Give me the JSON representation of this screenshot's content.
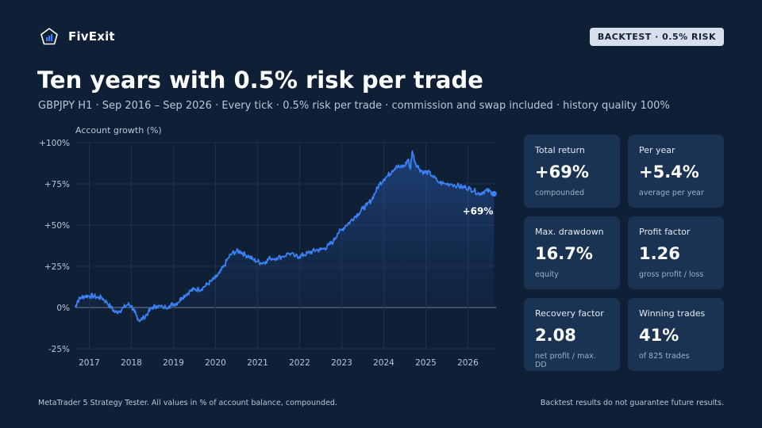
{
  "brand": {
    "name": "FivExit"
  },
  "badge": "BACKTEST · 0.5% RISK",
  "title": "Ten years with 0.5% risk per trade",
  "subtitle": "GBPJPY H1 · Sep 2016 – Sep 2026 · Every tick · 0.5% risk per trade · commission and swap included · history quality 100%",
  "colors": {
    "background": "#0f1f35",
    "card": "#1a3353",
    "line": "#3b82f6",
    "badge_bg": "#d6dfeb"
  },
  "cards": [
    {
      "label": "Total return",
      "value": "+69%",
      "sub": "compounded"
    },
    {
      "label": "Per year",
      "value": "+5.4%",
      "sub": "average per year"
    },
    {
      "label": "Max. drawdown",
      "value": "16.7%",
      "sub": "equity"
    },
    {
      "label": "Profit factor",
      "value": "1.26",
      "sub": "gross profit / loss"
    },
    {
      "label": "Recovery factor",
      "value": "2.08",
      "sub": "net profit / max. DD"
    },
    {
      "label": "Winning trades",
      "value": "41%",
      "sub": "of 825 trades"
    }
  ],
  "footer": {
    "left": "MetaTrader 5 Strategy Tester. All values in % of account balance, compounded.",
    "right": "Backtest results do not guarantee future results."
  },
  "chart_data": {
    "type": "line",
    "ylabel": "Account growth (%)",
    "xlim": [
      2016.67,
      2026.67
    ],
    "ylim": [
      -25,
      100
    ],
    "yticks": [
      100,
      75,
      50,
      25,
      0,
      -25
    ],
    "ytick_labels": [
      "+100%",
      "+75%",
      "+50%",
      "+25%",
      "0%",
      "-25%"
    ],
    "xticks": [
      2017,
      2018,
      2019,
      2020,
      2021,
      2022,
      2023,
      2024,
      2025,
      2026
    ],
    "xtick_labels": [
      "2017",
      "2018",
      "2019",
      "2020",
      "2021",
      "2022",
      "2023",
      "2024",
      "2025",
      "2026"
    ],
    "grid": true,
    "end_label": "+69%",
    "series": [
      {
        "x": [
          2016.67,
          2016.72,
          2016.8,
          2016.9,
          2017.0,
          2017.1,
          2017.2,
          2017.3,
          2017.42,
          2017.52,
          2017.62,
          2017.72,
          2017.82,
          2017.92,
          2018.0,
          2018.08,
          2018.12,
          2018.2,
          2018.3,
          2018.4,
          2018.5,
          2018.6,
          2018.75,
          2018.9,
          2019.0,
          2019.1,
          2019.2,
          2019.3,
          2019.4,
          2019.5,
          2019.6,
          2019.7,
          2019.8,
          2019.9,
          2020.0,
          2020.1,
          2020.2,
          2020.3,
          2020.4,
          2020.5,
          2020.6,
          2020.7,
          2020.8,
          2020.9,
          2021.0,
          2021.1,
          2021.2,
          2021.3,
          2021.45,
          2021.6,
          2021.75,
          2021.9,
          2022.0,
          2022.1,
          2022.2,
          2022.3,
          2022.4,
          2022.5,
          2022.6,
          2022.7,
          2022.8,
          2022.9,
          2023.0,
          2023.1,
          2023.2,
          2023.3,
          2023.4,
          2023.5,
          2023.6,
          2023.7,
          2023.8,
          2023.9,
          2024.0,
          2024.1,
          2024.2,
          2024.3,
          2024.4,
          2024.5,
          2024.58,
          2024.63,
          2024.68,
          2024.75,
          2024.85,
          2024.95,
          2025.05,
          2025.15,
          2025.3,
          2025.45,
          2025.6,
          2025.75,
          2025.85,
          2025.95,
          2026.05,
          2026.15,
          2026.25,
          2026.35,
          2026.45,
          2026.55,
          2026.62
        ],
        "y": [
          0,
          4,
          6,
          7,
          7,
          7,
          6,
          6,
          3,
          0,
          -3,
          -2,
          0,
          2,
          1,
          -3,
          -5,
          -8,
          -6,
          -3,
          0,
          1,
          0,
          1,
          2,
          3,
          6,
          8,
          10,
          11,
          11,
          12,
          14,
          16,
          18,
          21,
          25,
          30,
          33,
          34,
          34,
          32,
          31,
          29,
          28,
          27,
          28,
          30,
          30,
          31,
          33,
          31,
          31,
          32,
          33,
          34,
          35,
          35,
          36,
          38,
          40,
          45,
          47,
          50,
          52,
          55,
          57,
          60,
          62,
          65,
          70,
          75,
          78,
          80,
          83,
          86,
          85,
          86,
          90,
          84,
          95,
          88,
          84,
          82,
          82,
          80,
          76,
          75,
          75,
          74,
          73,
          73,
          72,
          71,
          69,
          70,
          71,
          70,
          69
        ]
      }
    ]
  }
}
